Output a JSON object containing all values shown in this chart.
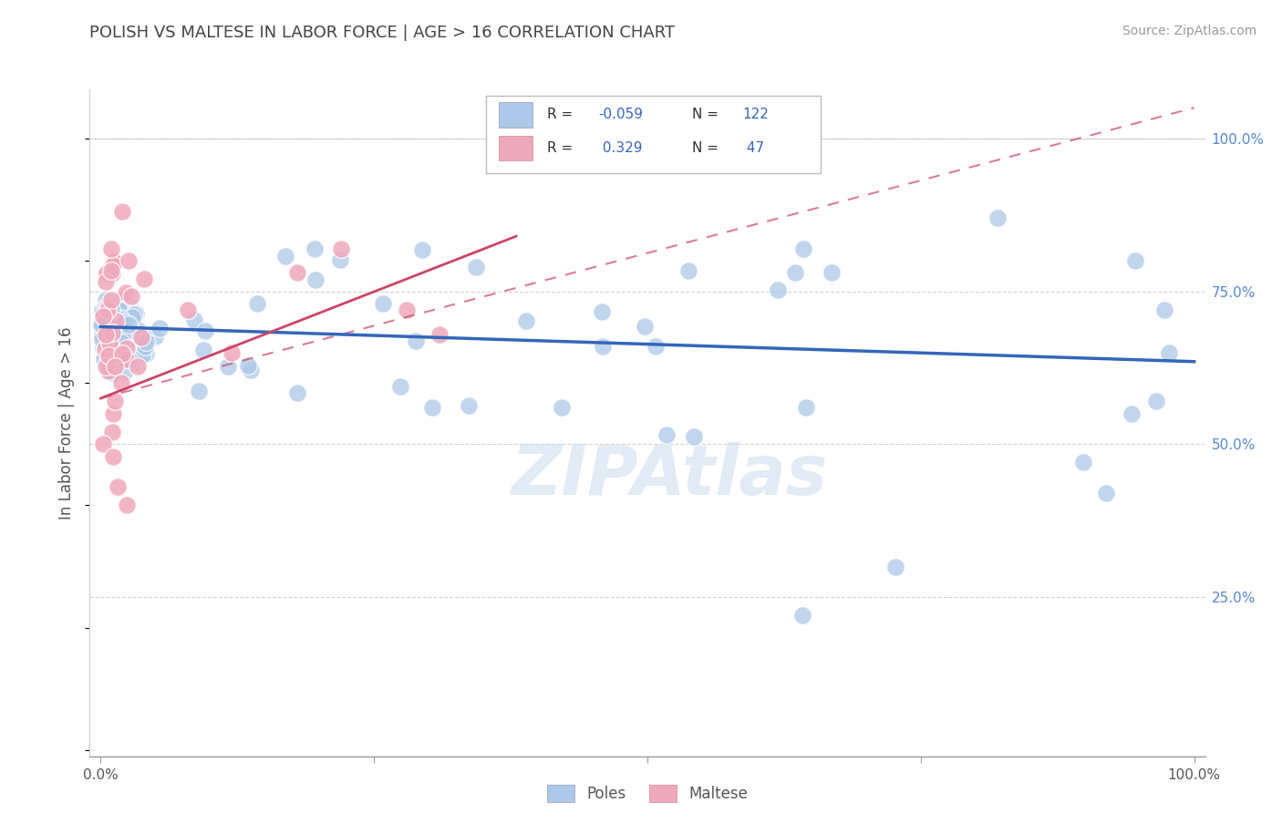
{
  "title": "POLISH VS MALTESE IN LABOR FORCE | AGE > 16 CORRELATION CHART",
  "source_text": "Source: ZipAtlas.com",
  "ylabel": "In Labor Force | Age > 16",
  "poles_R": -0.059,
  "poles_N": 122,
  "maltese_R": 0.329,
  "maltese_N": 47,
  "poles_color": "#adc8e8",
  "maltese_color": "#f0a8bc",
  "poles_line_color": "#3366bb",
  "maltese_line_color": "#cc4466",
  "background_color": "#ffffff",
  "title_color": "#444444",
  "axis_label_color": "#5588cc",
  "grid_color": "#cccccc",
  "watermark": "ZIPAtlas",
  "legend_labels": [
    "Poles",
    "Maltese"
  ],
  "xlim": [
    0.0,
    1.0
  ],
  "ylim": [
    0.0,
    1.05
  ]
}
